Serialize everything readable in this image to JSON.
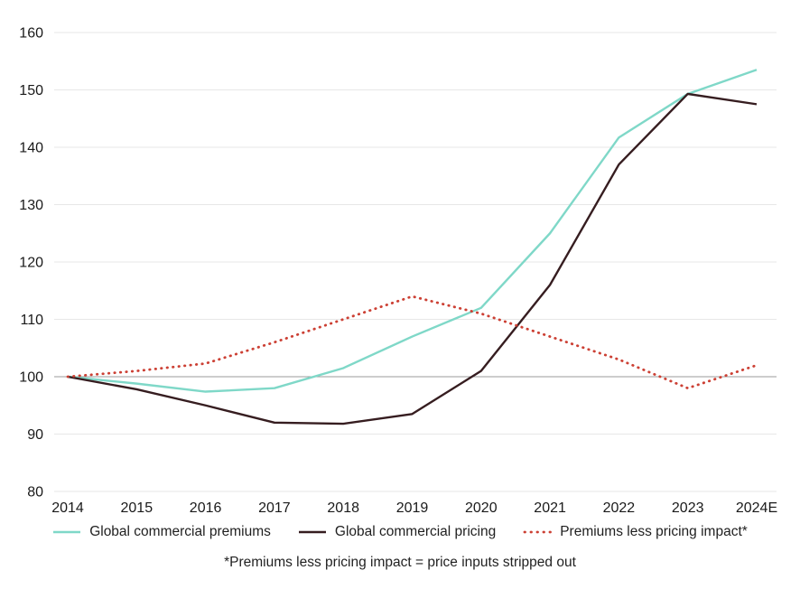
{
  "chart_data": {
    "type": "line",
    "title": "",
    "xlabel": "",
    "ylabel": "",
    "categories": [
      "2014",
      "2015",
      "2016",
      "2017",
      "2018",
      "2019",
      "2020",
      "2021",
      "2022",
      "2023",
      "2024E"
    ],
    "series": [
      {
        "name": "Global commercial premiums",
        "color": "#7fd8c8",
        "style": "solid",
        "values": [
          100,
          98.8,
          97.4,
          98,
          101.5,
          107,
          112,
          125,
          141.7,
          149.3,
          153.5
        ]
      },
      {
        "name": "Global commercial pricing",
        "color": "#361d20",
        "style": "solid",
        "values": [
          100,
          97.8,
          95,
          92,
          91.8,
          93.5,
          101,
          116,
          137,
          149.3,
          147.5
        ]
      },
      {
        "name": "Premiums less pricing impact*",
        "color": "#cc4034",
        "style": "dotted",
        "values": [
          100,
          101,
          102.3,
          106,
          110,
          114,
          111,
          107,
          103,
          98,
          102
        ]
      }
    ],
    "ylim": [
      80,
      160
    ],
    "ytick_step": 10,
    "yticks": [
      "80",
      "90",
      "100",
      "110",
      "120",
      "130",
      "140",
      "150",
      "160"
    ],
    "baseline_value": 100,
    "grid": "horizontal",
    "legend_position": "bottom",
    "footnote": "*Premiums less pricing impact = price inputs stripped out",
    "colors": {
      "axis_text": "#1a1a1a",
      "grid": "#e7e7e7",
      "baseline": "#9b9b9b"
    }
  }
}
